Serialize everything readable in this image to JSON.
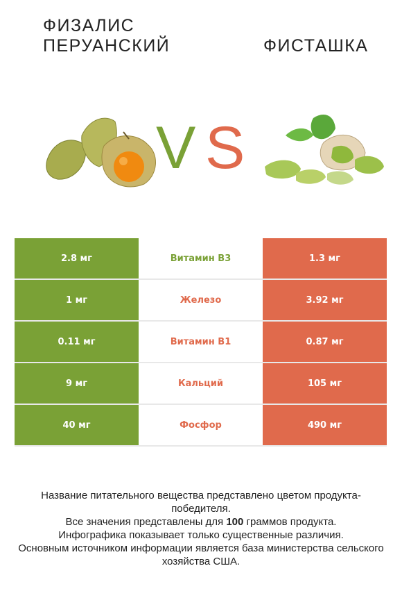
{
  "header": {
    "left_title": "Физалис перуанский",
    "right_title": "Фисташка",
    "vs_v": "V",
    "vs_s": "S"
  },
  "colors": {
    "left_accent": "#7aa136",
    "right_accent": "#e06a4c"
  },
  "rows": [
    {
      "left": "2.8 мг",
      "name": "Витамин B3",
      "right": "1.3 мг",
      "winner": "left"
    },
    {
      "left": "1 мг",
      "name": "Железо",
      "right": "3.92 мг",
      "winner": "right"
    },
    {
      "left": "0.11 мг",
      "name": "Витамин B1",
      "right": "0.87 мг",
      "winner": "right"
    },
    {
      "left": "9 мг",
      "name": "Кальций",
      "right": "105 мг",
      "winner": "right"
    },
    {
      "left": "40 мг",
      "name": "Фосфор",
      "right": "490 мг",
      "winner": "right"
    }
  ],
  "footer": {
    "line1": "Название питательного вещества представлено цветом продукта-победителя.",
    "line2_pre": "Все значения представлены для ",
    "line2_bold": "100",
    "line2_post": " граммов продукта.",
    "line3": "Инфографика показывает только существенные различия.",
    "line4": "Основным источником информации является база министерства сельского хозяйства США."
  }
}
